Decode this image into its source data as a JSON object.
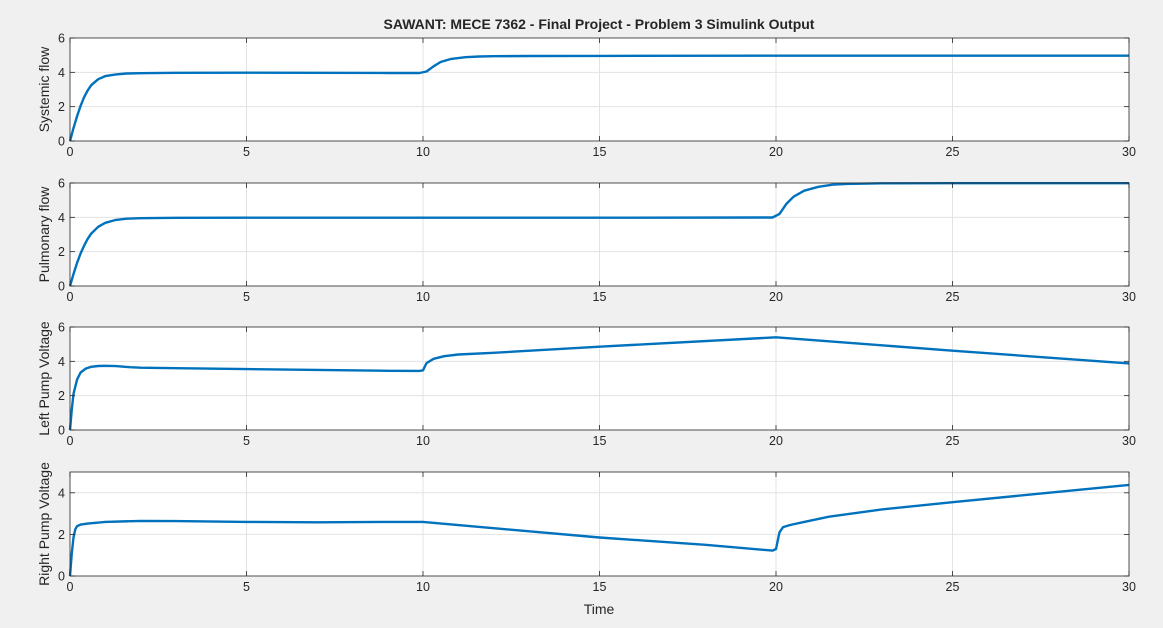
{
  "figure_title": "SAWANT: MECE 7362 - Final Project - Problem 3 Simulink Output",
  "xlabel": "Time",
  "colors": {
    "background": "#f0f0f0",
    "axes_background": "#ffffff",
    "grid": "#e3e3e3",
    "axis_line": "#262626",
    "series": "#0072bd"
  },
  "chart_data": [
    {
      "type": "line",
      "ylabel": "Systemic flow",
      "xlim": [
        0,
        30
      ],
      "ylim": [
        0,
        6
      ],
      "xticks": [
        0,
        5,
        10,
        15,
        20,
        25,
        30
      ],
      "yticks": [
        0,
        2,
        4,
        6
      ],
      "grid": true,
      "series": [
        {
          "x": [
            0,
            0.1,
            0.2,
            0.3,
            0.4,
            0.5,
            0.6,
            0.8,
            1.0,
            1.3,
            1.6,
            2.0,
            3,
            5,
            7,
            9,
            9.9,
            10.1,
            10.3,
            10.5,
            10.8,
            11.2,
            11.6,
            12,
            13,
            15,
            20,
            25,
            30
          ],
          "y": [
            0,
            0.75,
            1.45,
            2.05,
            2.55,
            2.95,
            3.25,
            3.6,
            3.78,
            3.88,
            3.93,
            3.95,
            3.97,
            3.98,
            3.97,
            3.96,
            3.96,
            4.05,
            4.35,
            4.6,
            4.78,
            4.88,
            4.92,
            4.94,
            4.95,
            4.96,
            4.97,
            4.97,
            4.97
          ]
        }
      ]
    },
    {
      "type": "line",
      "ylabel": "Pulmonary flow",
      "xlim": [
        0,
        30
      ],
      "ylim": [
        0,
        6
      ],
      "xticks": [
        0,
        5,
        10,
        15,
        20,
        25,
        30
      ],
      "yticks": [
        0,
        2,
        4,
        6
      ],
      "grid": true,
      "series": [
        {
          "x": [
            0,
            0.1,
            0.2,
            0.3,
            0.4,
            0.5,
            0.6,
            0.8,
            1.0,
            1.3,
            1.6,
            2.0,
            3,
            5,
            10,
            15,
            19.9,
            20.1,
            20.3,
            20.5,
            20.8,
            21.2,
            21.6,
            22,
            23,
            25,
            30
          ],
          "y": [
            0,
            0.7,
            1.35,
            1.9,
            2.35,
            2.75,
            3.05,
            3.45,
            3.68,
            3.85,
            3.92,
            3.95,
            3.97,
            3.98,
            3.98,
            3.98,
            3.99,
            4.2,
            4.8,
            5.2,
            5.55,
            5.78,
            5.9,
            5.95,
            5.98,
            5.99,
            5.99
          ]
        }
      ]
    },
    {
      "type": "line",
      "ylabel": "Left Pump Voltage",
      "xlim": [
        0,
        30
      ],
      "ylim": [
        0,
        6
      ],
      "xticks": [
        0,
        5,
        10,
        15,
        20,
        25,
        30
      ],
      "yticks": [
        0,
        2,
        4,
        6
      ],
      "grid": true,
      "series": [
        {
          "x": [
            0,
            0.05,
            0.1,
            0.2,
            0.3,
            0.45,
            0.6,
            0.8,
            1.0,
            1.3,
            1.7,
            2,
            3,
            5,
            7,
            9,
            9.9,
            10.0,
            10.1,
            10.3,
            10.6,
            11,
            12,
            15,
            20,
            25,
            30
          ],
          "y": [
            0,
            1.2,
            2.1,
            2.95,
            3.35,
            3.58,
            3.68,
            3.73,
            3.74,
            3.72,
            3.66,
            3.63,
            3.6,
            3.55,
            3.5,
            3.45,
            3.44,
            3.48,
            3.9,
            4.15,
            4.3,
            4.4,
            4.5,
            4.85,
            5.4,
            4.62,
            3.88
          ]
        }
      ]
    },
    {
      "type": "line",
      "ylabel": "Right Pump Voltage",
      "xlim": [
        0,
        30
      ],
      "ylim": [
        0,
        5
      ],
      "xticks": [
        0,
        5,
        10,
        15,
        20,
        25,
        30
      ],
      "yticks": [
        0,
        2,
        4
      ],
      "grid": true,
      "series": [
        {
          "x": [
            0,
            0.05,
            0.1,
            0.15,
            0.2,
            0.3,
            0.5,
            1,
            2,
            3,
            5,
            7,
            9,
            10,
            12,
            15,
            18,
            19.9,
            20.0,
            20.1,
            20.2,
            20.4,
            20.8,
            21.5,
            23,
            25,
            28,
            30
          ],
          "y": [
            0,
            1.1,
            1.85,
            2.25,
            2.4,
            2.47,
            2.52,
            2.6,
            2.65,
            2.64,
            2.6,
            2.58,
            2.6,
            2.6,
            2.3,
            1.85,
            1.5,
            1.22,
            1.3,
            2.1,
            2.35,
            2.45,
            2.6,
            2.85,
            3.2,
            3.55,
            4.05,
            4.38
          ]
        }
      ]
    }
  ]
}
